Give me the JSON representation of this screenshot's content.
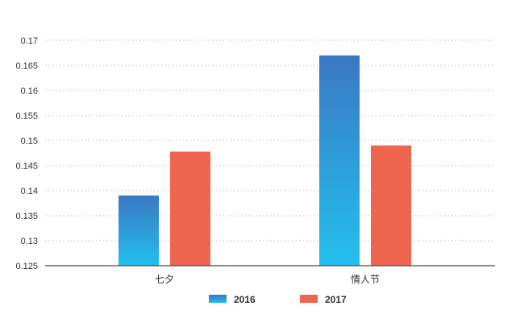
{
  "chart_data": {
    "type": "bar",
    "title": "",
    "xlabel": "",
    "ylabel": "",
    "categories": [
      "七夕",
      "情人节"
    ],
    "series": [
      {
        "name": "2016",
        "values": [
          0.139,
          0.167
        ]
      },
      {
        "name": "2017",
        "values": [
          0.1478,
          0.149
        ]
      }
    ],
    "ylim": [
      0.125,
      0.17
    ],
    "yticks": [
      "0.125",
      "0.13",
      "0.135",
      "0.14",
      "0.145",
      "0.15",
      "0.155",
      "0.16",
      "0.165",
      "0.17"
    ],
    "grid": "horizontal dotted",
    "legend": "bottom-center",
    "colors": {
      "2016_top": "#3a78c2",
      "2016_bottom": "#22c0ee",
      "2017": "#ef6650",
      "grid": "#b8b8b8",
      "axis": "#444444"
    }
  }
}
